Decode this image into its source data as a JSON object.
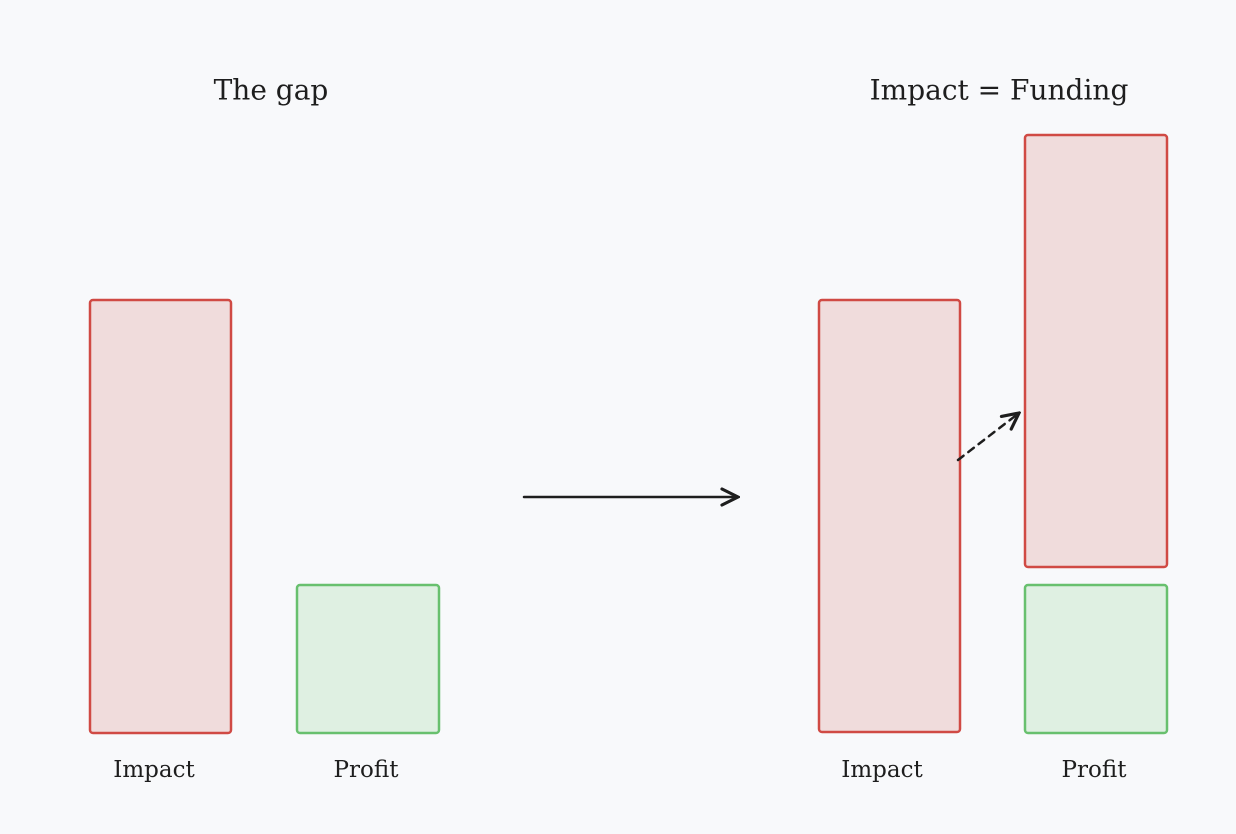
{
  "left": {
    "title": "The gap",
    "labels": [
      "Impact",
      "Profit"
    ]
  },
  "right": {
    "title": "Impact = Funding",
    "labels": [
      "Impact",
      "Profit"
    ]
  }
}
